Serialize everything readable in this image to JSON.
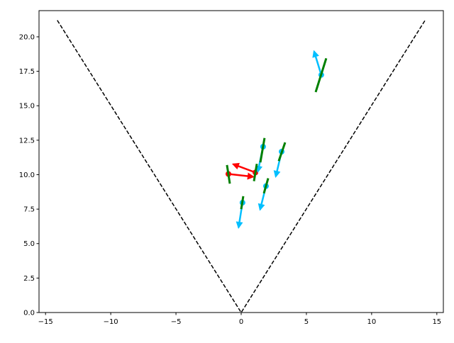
{
  "chart_data": {
    "type": "scatter",
    "title": "",
    "xlabel": "",
    "ylabel": "",
    "xlim": [
      -15.5,
      15.5
    ],
    "ylim": [
      0,
      21.9
    ],
    "grid": false,
    "x_ticks": [
      -15,
      -10,
      -5,
      0,
      5,
      10,
      15
    ],
    "x_tick_labels": [
      "−15",
      "−10",
      "−5",
      "0",
      "5",
      "10",
      "15"
    ],
    "y_ticks": [
      0,
      2.5,
      5,
      7.5,
      10,
      12.5,
      15,
      17.5,
      20
    ],
    "y_tick_labels": [
      "0.0",
      "2.5",
      "5.0",
      "7.5",
      "10.0",
      "12.5",
      "15.0",
      "17.5",
      "20.0"
    ],
    "boundary_line": {
      "color": "#000000",
      "style": "dashed",
      "points": [
        [
          -14.1,
          21.2
        ],
        [
          0,
          0
        ],
        [
          14.1,
          21.2
        ]
      ]
    },
    "points": [
      {
        "x": -0.98,
        "y": 10.05,
        "color": "#ff0000",
        "u": 1.9,
        "v": -0.2,
        "seg": [
          [
            -1.09,
            10.7
          ],
          [
            -0.87,
            9.35
          ]
        ]
      },
      {
        "x": 1.09,
        "y": 10.16,
        "color": "#ff0000",
        "u": -1.7,
        "v": 0.6,
        "seg": [
          [
            1.2,
            10.78
          ],
          [
            0.98,
            9.53
          ]
        ]
      },
      {
        "x": 1.68,
        "y": 12.03,
        "color": "#00bfff",
        "u": -0.4,
        "v": -1.8,
        "seg": [
          [
            1.79,
            12.66
          ],
          [
            1.47,
            10.89
          ]
        ]
      },
      {
        "x": 3.1,
        "y": 11.67,
        "color": "#00bfff",
        "u": -0.45,
        "v": -1.8,
        "seg": [
          [
            3.37,
            12.34
          ],
          [
            2.88,
            10.99
          ]
        ]
      },
      {
        "x": 1.9,
        "y": 9.17,
        "color": "#00bfff",
        "u": -0.45,
        "v": -1.7,
        "seg": [
          [
            2.07,
            9.74
          ],
          [
            1.74,
            8.65
          ]
        ]
      },
      {
        "x": 0.1,
        "y": 7.97,
        "color": "#00bfff",
        "u": -0.3,
        "v": -1.8,
        "seg": [
          [
            0.16,
            8.44
          ],
          [
            0.0,
            7.5
          ]
        ]
      },
      {
        "x": 6.14,
        "y": 17.24,
        "color": "#00bfff",
        "u": -0.55,
        "v": 1.7,
        "seg": [
          [
            6.52,
            18.44
          ],
          [
            5.71,
            15.99
          ]
        ]
      }
    ],
    "segment_color": "#008000"
  }
}
